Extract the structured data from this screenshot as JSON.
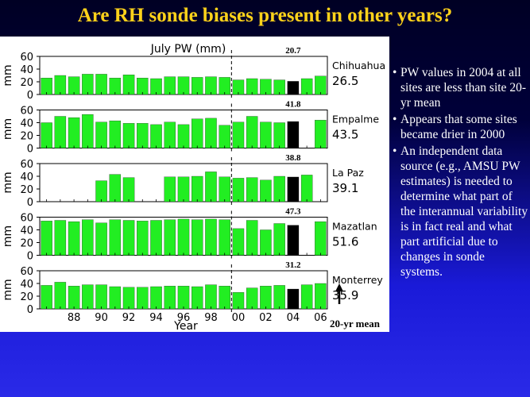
{
  "slide": {
    "title": "Are RH sonde biases present in other years?"
  },
  "colors": {
    "title": "#ffd21a",
    "bar": "#22ee22",
    "bar_2004": "#000000",
    "text": "#ffffff"
  },
  "bullets": [
    " PW values in 2004 at all sites are less than site 20-yr mean",
    "Appears that some sites became drier in 2000",
    "An independent data source (e.g., AMSU PW estimates) is needed to determine what part of the interannual variability is in fact real and what part artificial due to changes in sonde systems."
  ],
  "chart_data": {
    "type": "bar",
    "title": "July PW (mm)",
    "xlabel": "Year",
    "ylabel": "mm",
    "ylim": [
      0,
      60
    ],
    "yticks": [
      0,
      20,
      40,
      60
    ],
    "x_tick_labels": [
      "88",
      "90",
      "92",
      "94",
      "96",
      "98",
      "00",
      "02",
      "04",
      "06"
    ],
    "x": [
      1986,
      1987,
      1988,
      1989,
      1990,
      1991,
      1992,
      1993,
      1994,
      1995,
      1996,
      1997,
      1998,
      1999,
      2000,
      2001,
      2002,
      2003,
      2004,
      2005,
      2006
    ],
    "divider_note": "20-yr mean",
    "highlight_year": 2004,
    "series": [
      {
        "name": "Chihuahua",
        "mean_label": "26.5",
        "value_2004_label": "20.7",
        "values": [
          26,
          30,
          28,
          32,
          32,
          26,
          31,
          26,
          25,
          28,
          28,
          27,
          28,
          27,
          23,
          25,
          24,
          23,
          20.7,
          25,
          29
        ]
      },
      {
        "name": "Empalme",
        "mean_label": "43.5",
        "value_2004_label": "41.8",
        "values": [
          40,
          50,
          48,
          53,
          41,
          43,
          39,
          39,
          37,
          41,
          37,
          46,
          47,
          36,
          41,
          50,
          41,
          40,
          41.8,
          null,
          44
        ]
      },
      {
        "name": "La Paz",
        "mean_label": "39.1",
        "value_2004_label": "38.8",
        "values": [
          null,
          null,
          null,
          null,
          33,
          43,
          38,
          null,
          null,
          39,
          39,
          40,
          47,
          39,
          37,
          38,
          34,
          40,
          38.8,
          42,
          null
        ]
      },
      {
        "name": "Mazatlan",
        "mean_label": "51.6",
        "value_2004_label": "47.3",
        "values": [
          54,
          55,
          53,
          56,
          51,
          56,
          55,
          54,
          55,
          56,
          57,
          56,
          57,
          56,
          42,
          55,
          40,
          50,
          47.3,
          null,
          53
        ]
      },
      {
        "name": "Monterrey",
        "mean_label": "35.9",
        "value_2004_label": "31.2",
        "values": [
          37,
          42,
          36,
          38,
          38,
          35,
          34,
          34,
          35,
          36,
          36,
          35,
          38,
          36,
          26,
          33,
          36,
          37,
          31.2,
          38,
          40
        ]
      }
    ]
  }
}
